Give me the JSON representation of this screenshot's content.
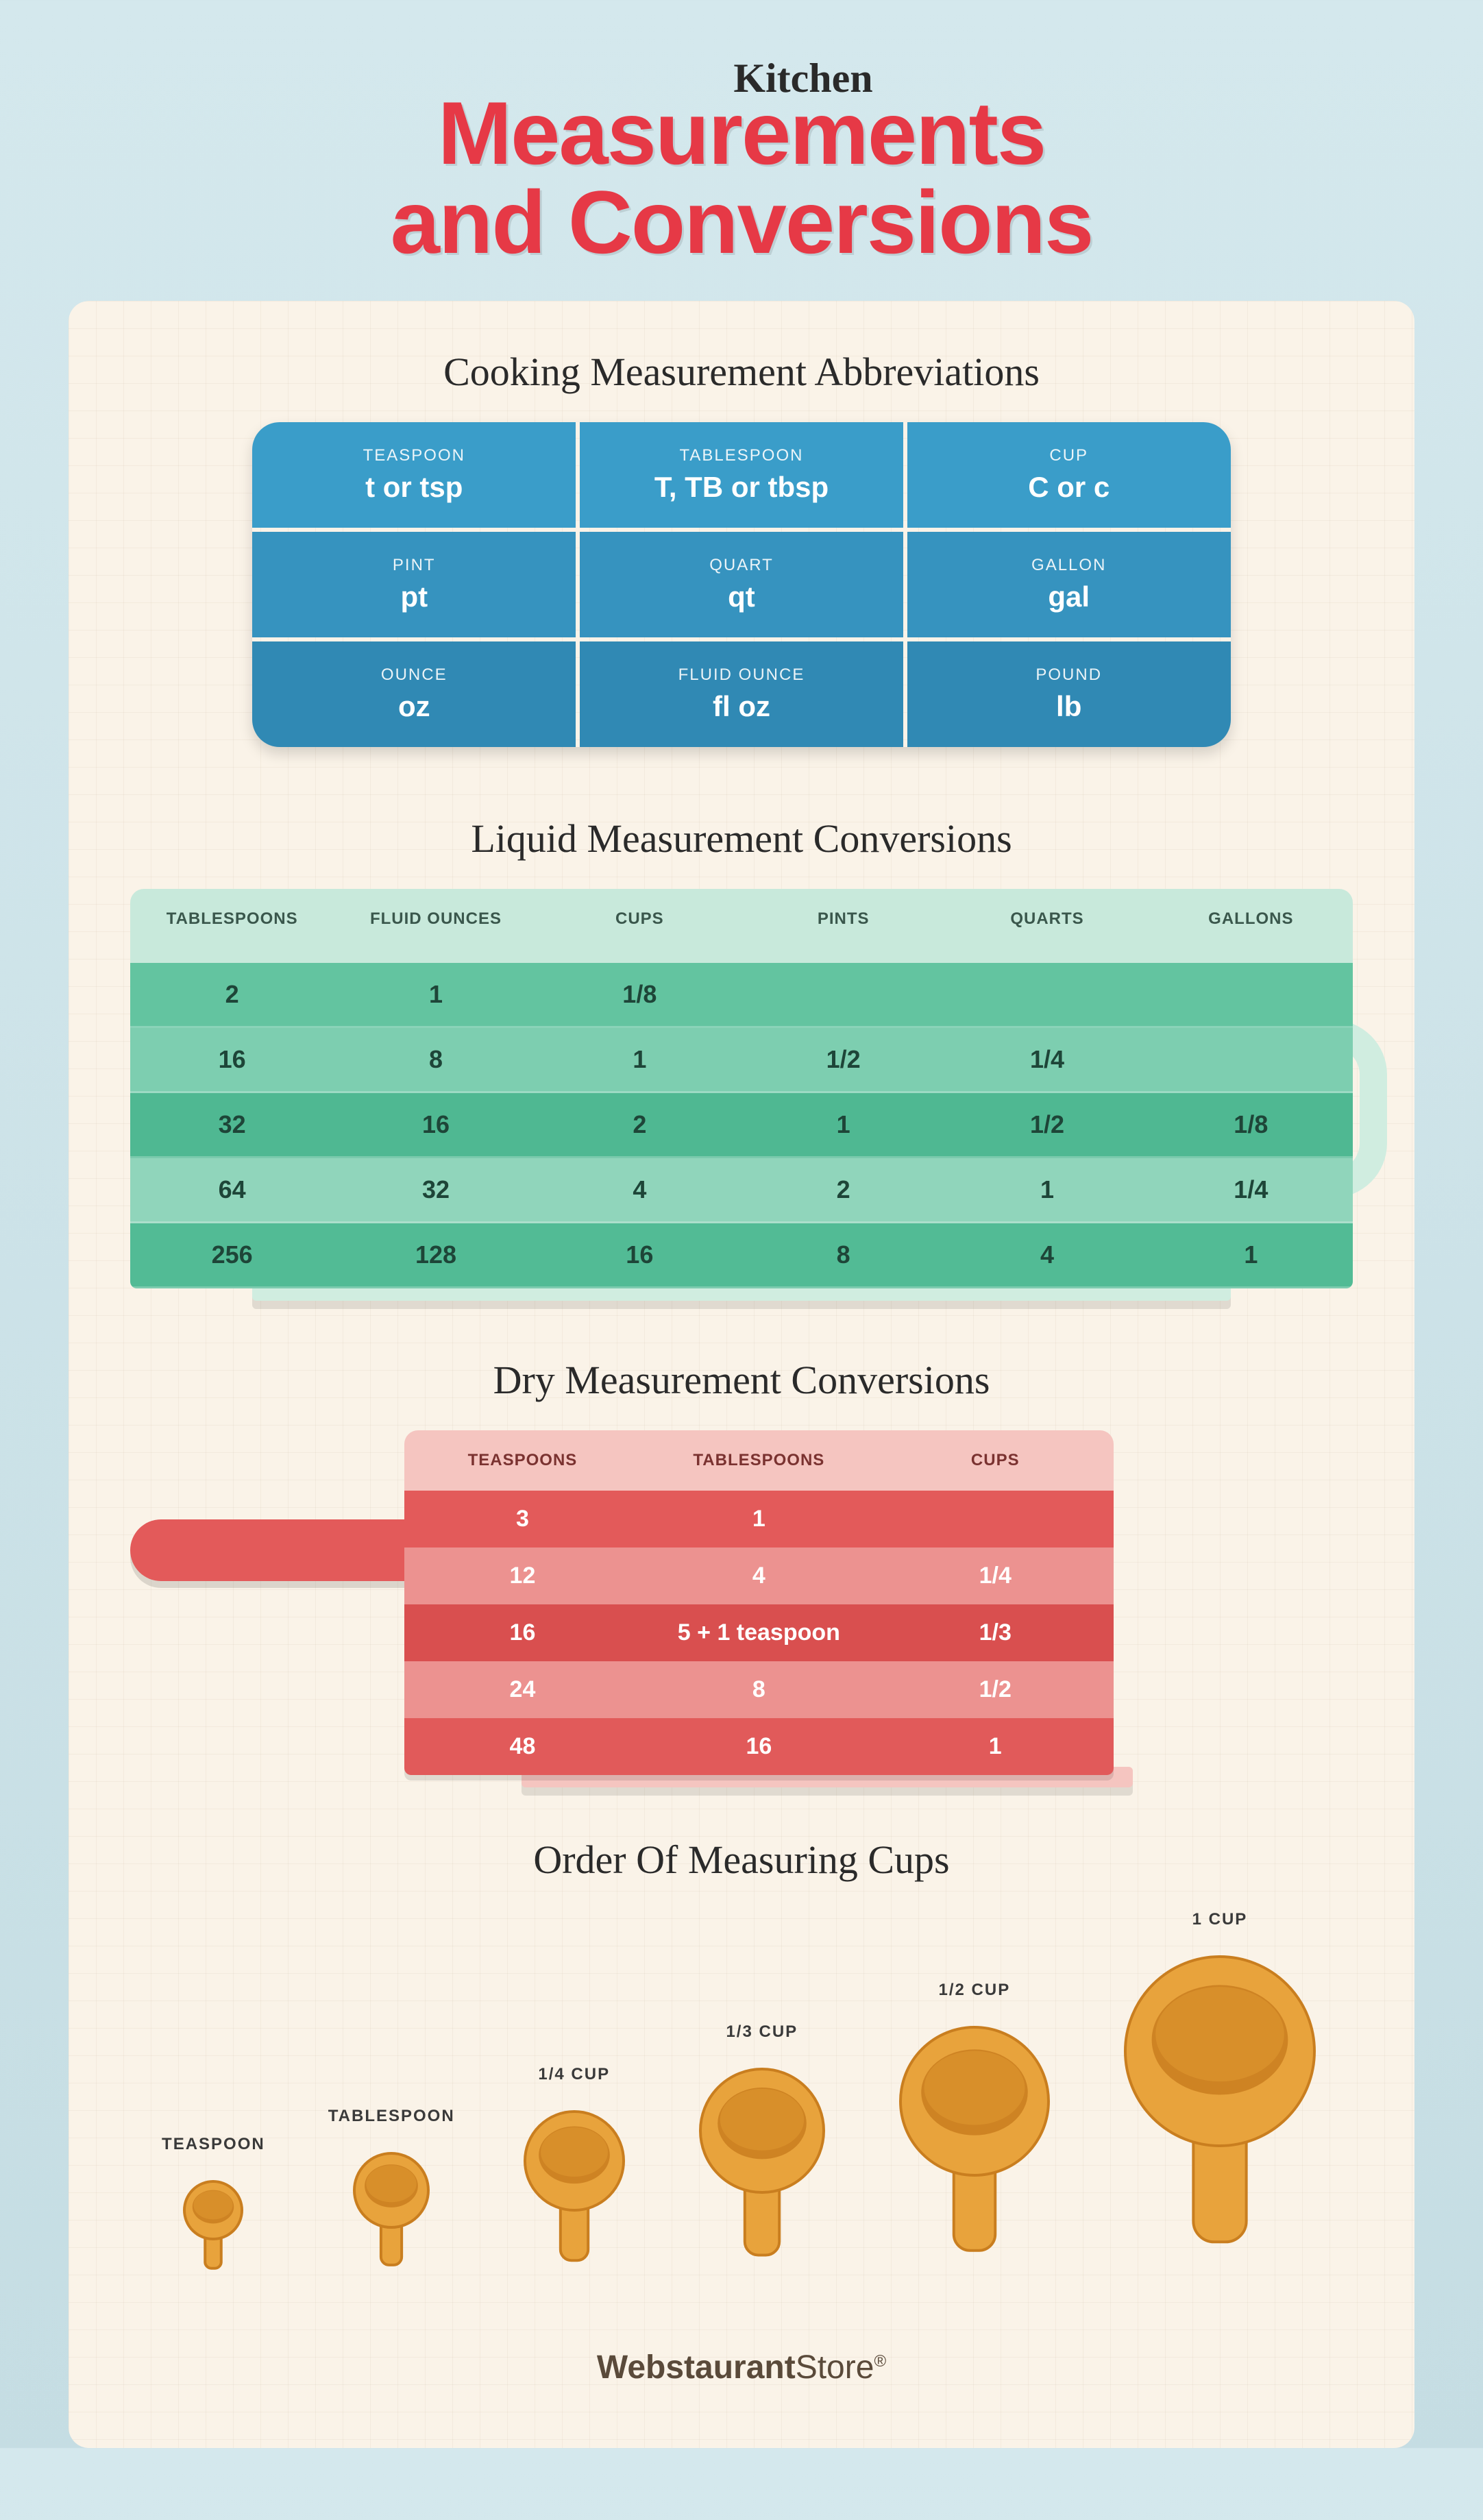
{
  "header": {
    "kitchen": "Kitchen",
    "title_line1": "Measurements",
    "title_line2": "and Conversions"
  },
  "abbrev": {
    "title": "Cooking Measurement Abbreviations",
    "rows": [
      [
        {
          "name": "TEASPOON",
          "abbrev": "t or tsp"
        },
        {
          "name": "TABLESPOON",
          "abbrev": "T, TB or tbsp"
        },
        {
          "name": "CUP",
          "abbrev": "C or c"
        }
      ],
      [
        {
          "name": "PINT",
          "abbrev": "pt"
        },
        {
          "name": "QUART",
          "abbrev": "qt"
        },
        {
          "name": "GALLON",
          "abbrev": "gal"
        }
      ],
      [
        {
          "name": "OUNCE",
          "abbrev": "oz"
        },
        {
          "name": "FLUID OUNCE",
          "abbrev": "fl oz"
        },
        {
          "name": "POUND",
          "abbrev": "lb"
        }
      ]
    ],
    "row_colors": [
      "#3a9dc9",
      "#3693bf",
      "#3089b4"
    ]
  },
  "liquid": {
    "title": "Liquid Measurement Conversions",
    "headers": [
      "TABLESPOONS",
      "FLUID OUNCES",
      "CUPS",
      "PINTS",
      "QUARTS",
      "GALLONS"
    ],
    "rows": [
      [
        "2",
        "1",
        "1/8",
        "",
        "",
        ""
      ],
      [
        "16",
        "8",
        "1",
        "1/2",
        "1/4",
        ""
      ],
      [
        "32",
        "16",
        "2",
        "1",
        "1/2",
        "1/8"
      ],
      [
        "64",
        "32",
        "4",
        "2",
        "1",
        "1/4"
      ],
      [
        "256",
        "128",
        "16",
        "8",
        "4",
        "1"
      ]
    ],
    "row_colors": [
      "#63c4a0",
      "#7dceb0",
      "#4fb892",
      "#90d5bb",
      "#52bb95"
    ]
  },
  "dry": {
    "title": "Dry Measurement Conversions",
    "headers": [
      "TEASPOONS",
      "TABLESPOONS",
      "CUPS"
    ],
    "rows": [
      [
        "3",
        "1",
        ""
      ],
      [
        "12",
        "4",
        "1/4"
      ],
      [
        "16",
        "5 + 1 teaspoon",
        "1/3"
      ],
      [
        "24",
        "8",
        "1/2"
      ],
      [
        "48",
        "16",
        "1"
      ]
    ],
    "row_colors": [
      "#e35a5a",
      "#ec9290",
      "#d94f4f",
      "#ec9290",
      "#e15a5a"
    ]
  },
  "cups": {
    "title": "Order Of Measuring Cups",
    "items": [
      {
        "label": "TEASPOON",
        "scale": 0.35
      },
      {
        "label": "TABLESPOON",
        "scale": 0.45
      },
      {
        "label": "1/4 CUP",
        "scale": 0.6
      },
      {
        "label": "1/3 CUP",
        "scale": 0.75
      },
      {
        "label": "1/2 CUP",
        "scale": 0.9
      },
      {
        "label": "1 CUP",
        "scale": 1.15
      }
    ],
    "base_bowl": 120,
    "base_handle": 170,
    "fill": "#e8a33c",
    "stroke": "#c97e1f"
  },
  "footer": {
    "brand_a": "Webstaurant",
    "brand_b": "Store"
  }
}
